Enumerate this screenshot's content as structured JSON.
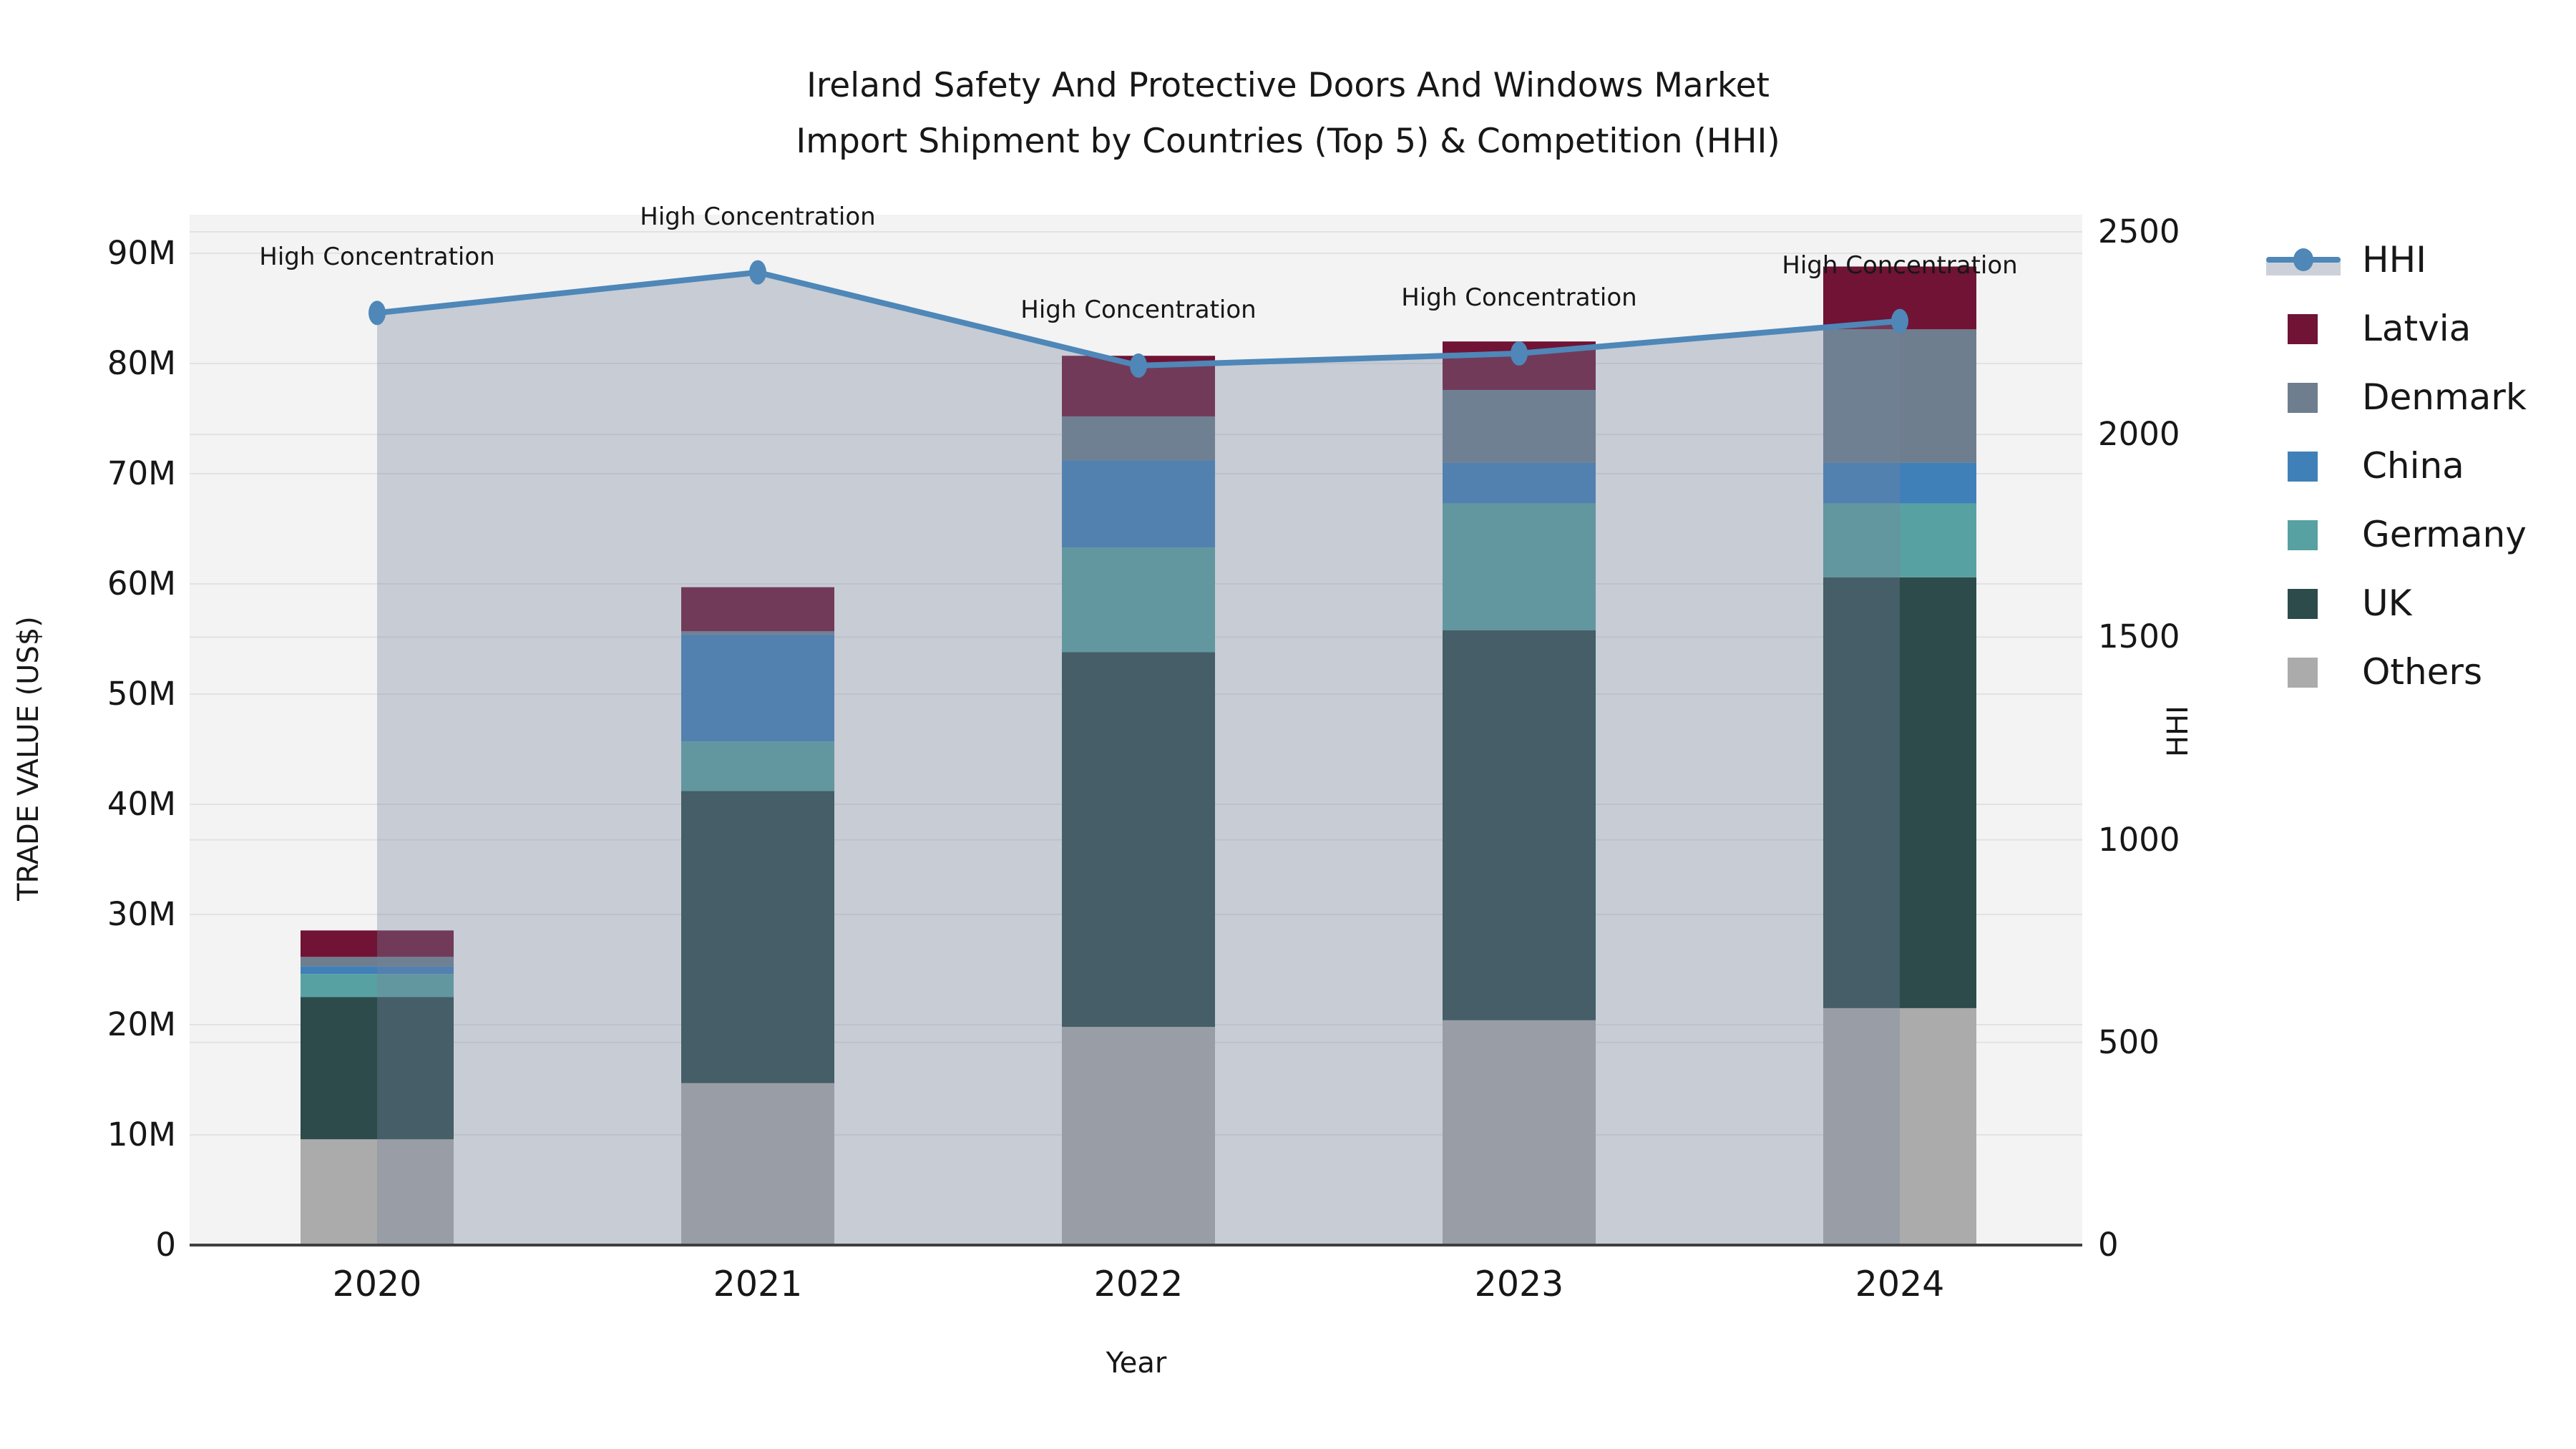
{
  "title": {
    "line1": "Ireland Safety And Protective Doors And Windows Market",
    "line2": "Import Shipment by Countries (Top 5) & Competition (HHI)"
  },
  "left_axis": {
    "title": "TRADE VALUE (US$)",
    "tick_labels": [
      "0",
      "10M",
      "20M",
      "30M",
      "40M",
      "50M",
      "60M",
      "70M",
      "80M",
      "90M"
    ],
    "tick_values": [
      0,
      10,
      20,
      30,
      40,
      50,
      60,
      70,
      80,
      90
    ]
  },
  "right_axis": {
    "title": "HHI",
    "tick_labels": [
      "0",
      "500",
      "1000",
      "1500",
      "2000",
      "2500"
    ],
    "tick_values": [
      0,
      500,
      1000,
      1500,
      2000,
      2500
    ]
  },
  "x_axis": {
    "title": "Year",
    "categories": [
      "2020",
      "2021",
      "2022",
      "2023",
      "2024"
    ]
  },
  "annotation_label": "High Concentration",
  "legend": [
    {
      "label": "HHI",
      "type": "line",
      "color": "#4e87b8"
    },
    {
      "label": "Latvia",
      "type": "swatch",
      "color": "#701335"
    },
    {
      "label": "Denmark",
      "type": "swatch",
      "color": "#6e7e8e"
    },
    {
      "label": "China",
      "type": "swatch",
      "color": "#4080b8"
    },
    {
      "label": "Germany",
      "type": "swatch",
      "color": "#58a1a2"
    },
    {
      "label": "UK",
      "type": "swatch",
      "color": "#2c4b4a"
    },
    {
      "label": "Others",
      "type": "swatch",
      "color": "#ababab"
    }
  ],
  "colors": {
    "plot_bg": "#f3f3f3",
    "grid": "#e2e2e2",
    "axis_line": "#3f3f3f",
    "line": "#4e87b8",
    "area_fill": "rgba(117,131,157,0.35)",
    "text": "#171717"
  },
  "chart_data": {
    "type": "bar",
    "subtype": "stacked-bar-with-line",
    "title": "Ireland Safety And Protective Doors And Windows Market Import Shipment by Countries (Top 5) & Competition (HHI)",
    "categories": [
      "2020",
      "2021",
      "2022",
      "2023",
      "2024"
    ],
    "bar_value_unit": "million US$",
    "series": [
      {
        "name": "Others",
        "color": "#ababab",
        "values": [
          9.6,
          14.7,
          19.8,
          20.4,
          21.5
        ]
      },
      {
        "name": "UK",
        "color": "#2c4b4a",
        "values": [
          12.9,
          26.5,
          34.0,
          35.4,
          39.1
        ]
      },
      {
        "name": "Germany",
        "color": "#58a1a2",
        "values": [
          2.1,
          4.5,
          9.5,
          11.5,
          6.7
        ]
      },
      {
        "name": "China",
        "color": "#4080b8",
        "values": [
          0.7,
          9.7,
          7.9,
          3.7,
          3.7
        ]
      },
      {
        "name": "Denmark",
        "color": "#6e7e8e",
        "values": [
          0.85,
          0.3,
          4.0,
          6.6,
          12.1
        ]
      },
      {
        "name": "Latvia",
        "color": "#701335",
        "values": [
          2.4,
          4.0,
          5.5,
          4.4,
          5.7
        ]
      }
    ],
    "bar_totals": [
      28.55,
      59.7,
      80.7,
      82.0,
      88.8
    ],
    "line_series": {
      "name": "HHI",
      "axis": "right",
      "color": "#4e87b8",
      "values": [
        2300,
        2400,
        2170,
        2200,
        2280
      ],
      "area_fill": "rgba(117,131,157,0.35)",
      "point_annotation": "High Concentration"
    },
    "xlabel": "Year",
    "ylabel_left": "TRADE VALUE (US$)",
    "ylabel_right": "HHI",
    "ylim_left": [
      0,
      90
    ],
    "ylim_right": [
      0,
      2500
    ],
    "grid": true,
    "legend_position": "right-outside"
  }
}
